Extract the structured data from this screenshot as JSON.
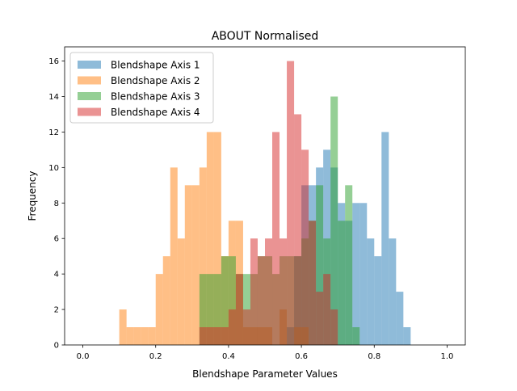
{
  "chart_data": {
    "type": "histogram",
    "title": "ABOUT Normalised",
    "xlabel": "Blendshape Parameter Values",
    "ylabel": "Frequency",
    "xlim": [
      -0.05,
      1.05
    ],
    "ylim": [
      0,
      16.8
    ],
    "xticks": [
      0.0,
      0.2,
      0.4,
      0.6,
      0.8,
      1.0
    ],
    "xtick_labels": [
      "0.0",
      "0.2",
      "0.4",
      "0.6",
      "0.8",
      "1.0"
    ],
    "yticks": [
      0,
      2,
      4,
      6,
      8,
      10,
      12,
      14,
      16
    ],
    "ytick_labels": [
      "0",
      "2",
      "4",
      "6",
      "8",
      "10",
      "12",
      "14",
      "16"
    ],
    "grid": false,
    "legend_position": "top-left",
    "bin_width": 0.02,
    "series": [
      {
        "name": "Blendshape Axis 1",
        "color": "#1f77b4",
        "alpha": 0.5,
        "bins": [
          [
            0.34,
            0
          ],
          [
            0.56,
            1
          ],
          [
            0.58,
            5
          ],
          [
            0.6,
            9
          ],
          [
            0.62,
            9
          ],
          [
            0.64,
            10
          ],
          [
            0.66,
            11
          ],
          [
            0.68,
            10
          ],
          [
            0.7,
            8
          ],
          [
            0.72,
            7
          ],
          [
            0.74,
            8
          ],
          [
            0.76,
            8
          ],
          [
            0.78,
            6
          ],
          [
            0.8,
            5
          ],
          [
            0.82,
            12
          ],
          [
            0.84,
            6
          ],
          [
            0.86,
            3
          ],
          [
            0.88,
            1
          ]
        ]
      },
      {
        "name": "Blendshape Axis 2",
        "color": "#ff7f0e",
        "alpha": 0.5,
        "bins": [
          [
            0.1,
            2
          ],
          [
            0.12,
            1
          ],
          [
            0.14,
            1
          ],
          [
            0.16,
            1
          ],
          [
            0.18,
            1
          ],
          [
            0.2,
            4
          ],
          [
            0.22,
            5
          ],
          [
            0.24,
            10
          ],
          [
            0.26,
            6
          ],
          [
            0.28,
            9
          ],
          [
            0.3,
            9
          ],
          [
            0.32,
            10
          ],
          [
            0.34,
            12
          ],
          [
            0.36,
            12
          ],
          [
            0.38,
            5
          ],
          [
            0.4,
            7
          ],
          [
            0.42,
            7
          ],
          [
            0.44,
            1
          ],
          [
            0.46,
            1
          ],
          [
            0.48,
            1
          ],
          [
            0.5,
            1
          ],
          [
            0.52,
            0
          ],
          [
            0.54,
            2
          ],
          [
            0.56,
            0
          ],
          [
            0.58,
            1
          ],
          [
            0.6,
            1
          ]
        ]
      },
      {
        "name": "Blendshape Axis 3",
        "color": "#2ca02c",
        "alpha": 0.5,
        "bins": [
          [
            0.32,
            4
          ],
          [
            0.34,
            4
          ],
          [
            0.36,
            4
          ],
          [
            0.38,
            5
          ],
          [
            0.4,
            5
          ],
          [
            0.42,
            4
          ],
          [
            0.44,
            4
          ],
          [
            0.46,
            4
          ],
          [
            0.48,
            5
          ],
          [
            0.5,
            5
          ],
          [
            0.52,
            4
          ],
          [
            0.54,
            5
          ],
          [
            0.56,
            5
          ],
          [
            0.58,
            5
          ],
          [
            0.6,
            6
          ],
          [
            0.62,
            7
          ],
          [
            0.64,
            9
          ],
          [
            0.66,
            6
          ],
          [
            0.68,
            14
          ],
          [
            0.7,
            7
          ],
          [
            0.72,
            9
          ],
          [
            0.74,
            1
          ]
        ]
      },
      {
        "name": "Blendshape Axis 4",
        "color": "#d62728",
        "alpha": 0.5,
        "bins": [
          [
            0.32,
            1
          ],
          [
            0.34,
            1
          ],
          [
            0.36,
            1
          ],
          [
            0.38,
            1
          ],
          [
            0.4,
            2
          ],
          [
            0.42,
            4
          ],
          [
            0.44,
            2
          ],
          [
            0.46,
            6
          ],
          [
            0.48,
            5
          ],
          [
            0.5,
            6
          ],
          [
            0.52,
            12
          ],
          [
            0.54,
            6
          ],
          [
            0.56,
            16
          ],
          [
            0.58,
            13
          ],
          [
            0.6,
            11
          ],
          [
            0.62,
            7
          ],
          [
            0.64,
            3
          ],
          [
            0.66,
            4
          ],
          [
            0.68,
            2
          ]
        ]
      }
    ]
  }
}
